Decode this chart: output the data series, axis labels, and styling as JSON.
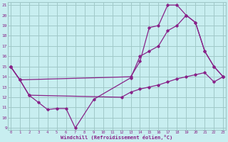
{
  "xlabel": "Windchill (Refroidissement éolien,°C)",
  "bg_color": "#c8eef0",
  "grid_color": "#a0c8c8",
  "line_color": "#882288",
  "xmin": 0,
  "xmax": 23,
  "ymin": 9,
  "ymax": 21,
  "series": [
    {
      "x": [
        0,
        1,
        2,
        3,
        4,
        5,
        6,
        7,
        9,
        13,
        14,
        15,
        16,
        17,
        18,
        19,
        20,
        21,
        22,
        23
      ],
      "y": [
        15,
        13.7,
        12.2,
        11.5,
        10.8,
        10.9,
        10.9,
        9.0,
        11.8,
        13.9,
        16.0,
        16.5,
        17.0,
        18.5,
        19.0,
        20.0,
        19.3,
        16.5,
        15.0,
        14.0
      ]
    },
    {
      "x": [
        0,
        1,
        13,
        14,
        15,
        16,
        17,
        18,
        19,
        20,
        21,
        22,
        23
      ],
      "y": [
        15,
        13.7,
        14.0,
        15.5,
        18.8,
        19.0,
        21.0,
        21.0,
        20.0,
        19.3,
        16.5,
        15.0,
        14.0
      ]
    },
    {
      "x": [
        0,
        1,
        2,
        12,
        13,
        14,
        15,
        16,
        17,
        18,
        19,
        20,
        21,
        22,
        23
      ],
      "y": [
        15,
        13.7,
        12.2,
        12.0,
        12.5,
        12.8,
        13.0,
        13.2,
        13.5,
        13.8,
        14.0,
        14.2,
        14.4,
        13.5,
        14.0
      ]
    }
  ]
}
